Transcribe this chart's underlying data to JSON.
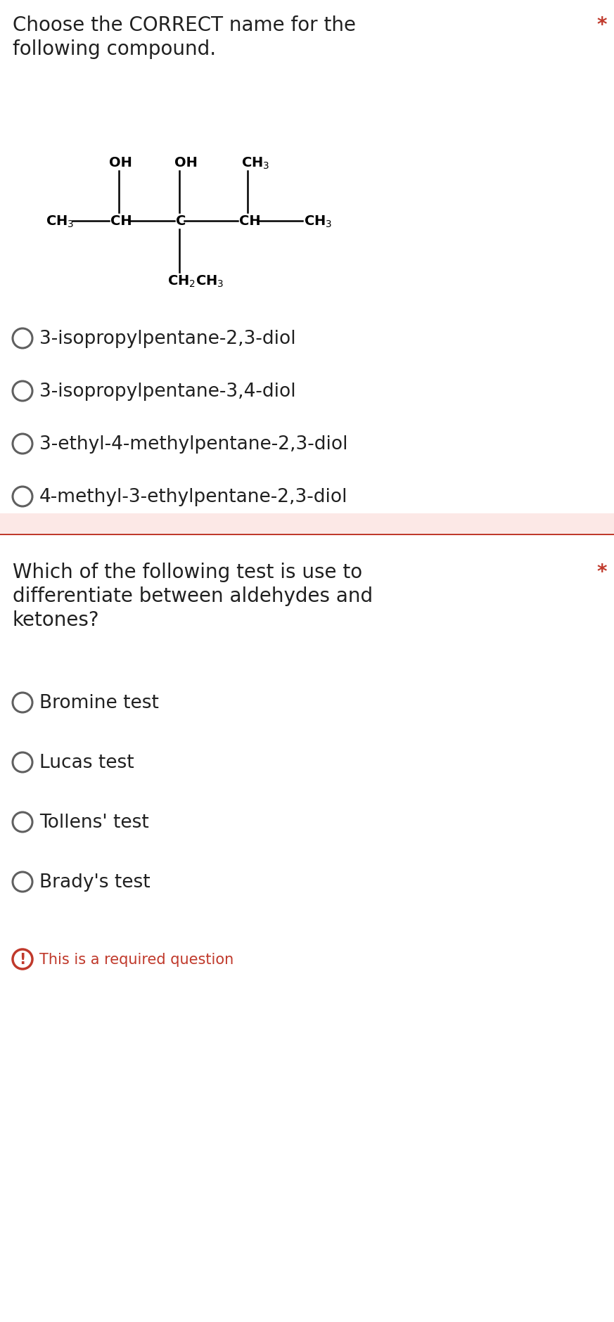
{
  "bg_color": "#ffffff",
  "q1_title_line1": "Choose the CORRECT name for the",
  "q1_title_line2": "following compound.",
  "q1_star": "*",
  "q1_options": [
    "3-isopropylpentane-2,3-diol",
    "3-isopropylpentane-3,4-diol",
    "3-ethyl-4-methylpentane-2,3-diol",
    "4-methyl-3-ethylpentane-2,3-diol"
  ],
  "q2_title_line1": "Which of the following test is use to",
  "q2_title_line2": "differentiate between aldehydes and",
  "q2_title_line3": "ketones?",
  "q2_star": "*",
  "q2_options": [
    "Bromine test",
    "Lucas test",
    "Tollens' test",
    "Brady's test"
  ],
  "required_text": "This is a required question",
  "divider_band_color": "#fce8e6",
  "divider_line_color": "#c0392b",
  "text_color": "#202020",
  "star_color": "#c0392b",
  "required_color": "#c0392b",
  "circle_edge_color": "#606060",
  "title_fontsize": 20,
  "option_fontsize": 19,
  "required_fontsize": 15,
  "struct_fontsize": 14
}
